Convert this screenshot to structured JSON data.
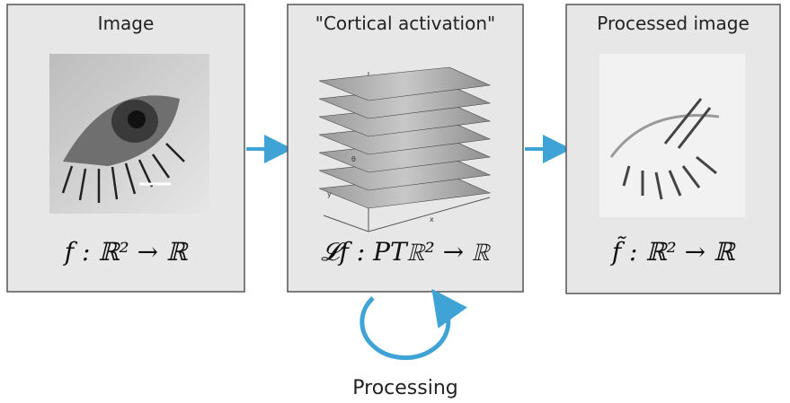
{
  "panels": [
    {
      "title": "Image",
      "formula": "f : ℝ² → ℝ"
    },
    {
      "title": "\"Cortical activation\"",
      "formula": "𝓛f : PTℝ² → ℝ"
    },
    {
      "title": "Processed image",
      "formula": "f̃ : ℝ² → ℝ"
    }
  ],
  "axis_labels": [
    "θ",
    "y",
    "x"
  ],
  "loop_label": "Processing"
}
